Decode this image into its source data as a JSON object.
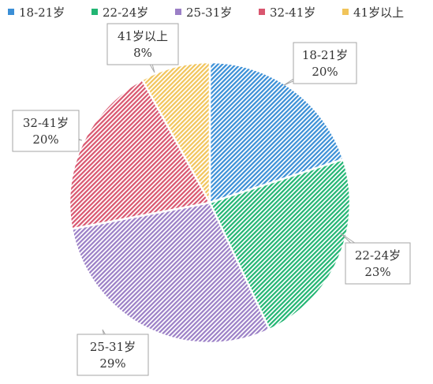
{
  "chart_data": {
    "type": "pie",
    "categories": [
      "18-21岁",
      "22-24岁",
      "25-31岁",
      "32-41岁",
      "41岁以上"
    ],
    "values": [
      20,
      23,
      29,
      20,
      8
    ],
    "value_labels": [
      "20%",
      "23%",
      "29%",
      "20%",
      "8%"
    ],
    "colors": [
      "#3b8fd6",
      "#22b573",
      "#9b7fc6",
      "#d9566f",
      "#f1c45a"
    ],
    "pattern": "diagonal-hatch",
    "start_angle_deg": 0,
    "direction": "clockwise",
    "legend": {
      "position": "top",
      "entries": [
        "18-21岁",
        "22-24岁",
        "25-31岁",
        "32-41岁",
        "41岁以上"
      ]
    },
    "data_labels": "callouts"
  }
}
